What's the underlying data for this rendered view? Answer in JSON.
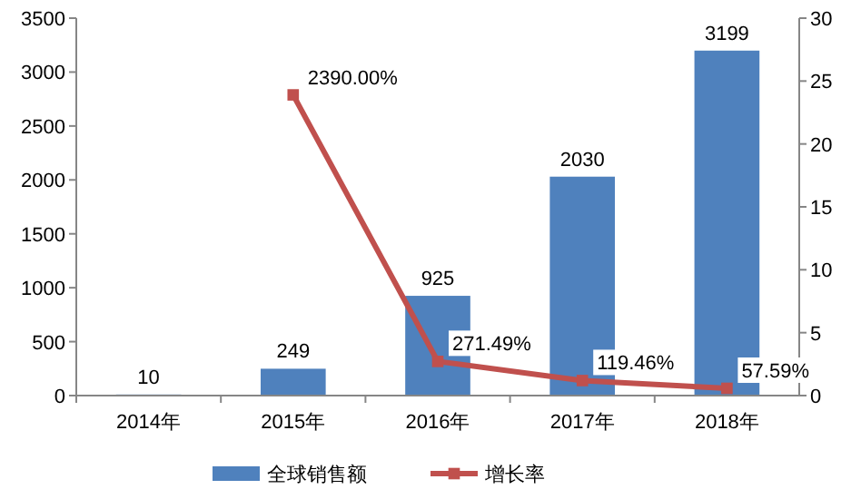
{
  "chart_data": {
    "type": "bar",
    "categories": [
      "2014年",
      "2015年",
      "2016年",
      "2017年",
      "2018年"
    ],
    "series": [
      {
        "name": "全球销售额",
        "color": "#4f81bd",
        "values": [
          10,
          249,
          925,
          2030,
          3199
        ],
        "value_labels": [
          "10",
          "249",
          "925",
          "2030",
          "3199"
        ]
      },
      {
        "name": "增长率",
        "type": "line",
        "axis": "y2",
        "color": "#c0504d",
        "marker": "square",
        "values": [
          null,
          23.9,
          2.7149,
          1.1946,
          0.5759
        ],
        "value_labels": [
          null,
          "2390.00%",
          "271.49%",
          "119.46%",
          "57.59%"
        ]
      }
    ],
    "ylim": [
      0,
      3500
    ],
    "yticks": [
      0,
      500,
      1000,
      1500,
      2000,
      2500,
      3000,
      3500
    ],
    "y2lim": [
      0,
      30
    ],
    "y2ticks": [
      0,
      5,
      10,
      15,
      20,
      25,
      30
    ],
    "grid": false,
    "legend": "bottom"
  }
}
